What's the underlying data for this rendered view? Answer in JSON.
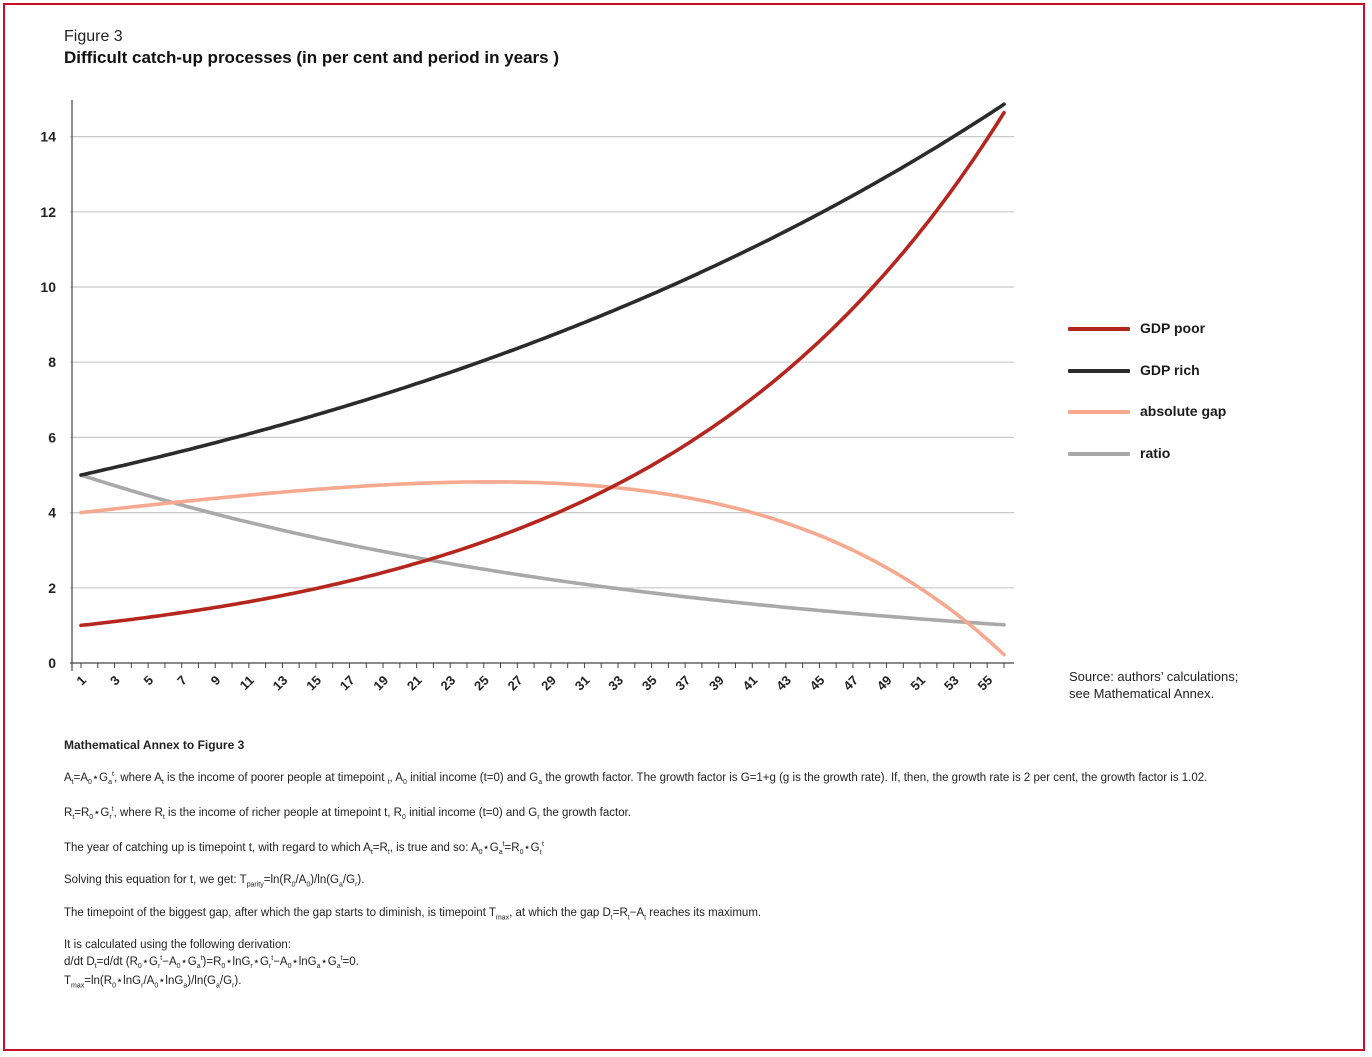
{
  "figure": {
    "label": "Figure 3",
    "title": "Difficult catch-up processes (in per cent and period in years )"
  },
  "legend": [
    {
      "label": "GDP poor",
      "color": "#b5261e"
    },
    {
      "label": "GDP rich",
      "color": "#2b2b2b"
    },
    {
      "label": "absolute gap",
      "color": "#f6a98e"
    },
    {
      "label": "ratio",
      "color": "#a9a9a9"
    }
  ],
  "source": {
    "line1": "Source: authors’ calculations;",
    "line2": "see Mathematical Annex."
  },
  "chart_data": {
    "type": "line",
    "x_start": 1,
    "x_end": 56,
    "x_tick_labels": [
      "1",
      "3",
      "5",
      "7",
      "9",
      "11",
      "13",
      "15",
      "17",
      "19",
      "21",
      "23",
      "25",
      "27",
      "29",
      "31",
      "33",
      "35",
      "37",
      "39",
      "41",
      "43",
      "45",
      "47",
      "49",
      "51",
      "53",
      "55"
    ],
    "y_tick_labels": [
      "0",
      "2",
      "4",
      "6",
      "8",
      "10",
      "12",
      "14"
    ],
    "ylim": [
      0,
      15
    ],
    "grid": true,
    "legend_position": "right",
    "series": [
      {
        "name": "GDP poor",
        "color": "#b5261e",
        "growth_factor": 1.05,
        "start_value": 1.0
      },
      {
        "name": "GDP rich",
        "color": "#2b2b2b",
        "growth_factor": 1.02,
        "start_value": 5.0
      },
      {
        "name": "absolute gap",
        "color": "#f6a98e",
        "formula": "GDP rich - GDP poor"
      },
      {
        "name": "ratio",
        "color": "#a9a9a9",
        "formula": "GDP rich / GDP poor"
      }
    ]
  },
  "annex": {
    "heading": "Mathematical Annex to Figure 3",
    "p1a": "A",
    "p1b": "=A",
    "p1c": "⋆G",
    "p1d": ", where A",
    "p1e": " is the income of poorer people at timepoint ",
    "p1f": ", A",
    "p1g": " initial income (t=0) and G",
    "p1h": " the growth factor. The growth factor is G=1+g (g is the growth rate). If, then, the growth rate is 2 per cent, the growth factor is 1.02.",
    "p2a": "R",
    "p2b": "=R",
    "p2c": "⋆G",
    "p2d": ", where R",
    "p2e": " is the income of richer people at timepoint t, R",
    "p2f": " initial income (t=0) and G",
    "p2g": " the growth factor.",
    "p3a": "The year of catching up is timepoint t, with regard to which A",
    "p3b": "=R",
    "p3c": ", is true and so: A",
    "p3d": "⋆G",
    "p3e": "=R",
    "p3f": "⋆G",
    "p4a": "Solving this equation for t, we get: T",
    "p4b": "=ln(R",
    "p4c": "/A",
    "p4d": ")/ln(G",
    "p4e": "/G",
    "p4f": ").",
    "p5a": "The timepoint of the biggest gap, after which the gap starts to diminish, is timepoint T",
    "p5b": ", at which the gap D",
    "p5c": "=R",
    "p5d": "−A",
    "p5e": " reaches its maximum.",
    "p6a": "It is calculated using the following derivation:",
    "p6b": "d/dt D",
    "p6c": "=d/dt (R",
    "p6d": "⋆G",
    "p6e": "−A",
    "p6f": "⋆G",
    "p6g": ")=R",
    "p6h": "⋆lnG",
    "p6i": "⋆G",
    "p6j": "−A",
    "p6k": "⋆lnG",
    "p6l": "⋆G",
    "p6m": "=0.",
    "p6n": "T",
    "p6o": "=ln(R",
    "p6p": "⋆lnG",
    "p6q": "/A",
    "p6r": "⋆lnG",
    "p6s": ")/ln(G",
    "p6t": "/G",
    "p6u": ").",
    "s_t": "t",
    "s_0": "0",
    "s_a": "a",
    "s_r": "r",
    "s_parity": "parity",
    "s_max": "max"
  }
}
